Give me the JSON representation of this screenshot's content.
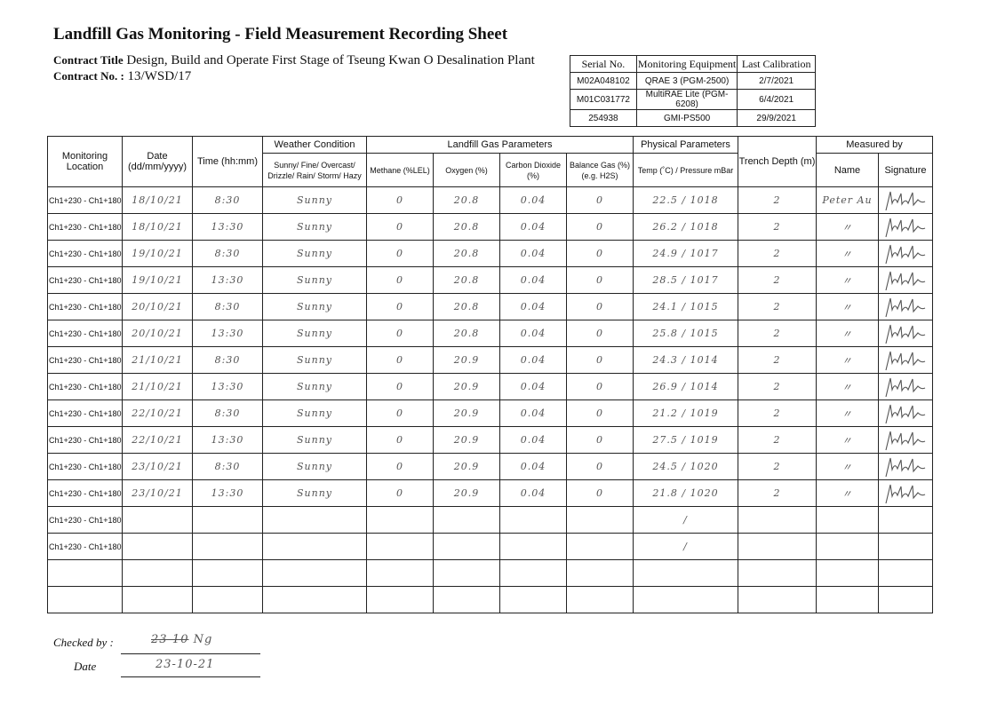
{
  "header": {
    "title": "Landfill Gas Monitoring - Field Measurement Recording Sheet",
    "contract_title_label": "Contract Title",
    "contract_title": "Design, Build and Operate First Stage of Tseung Kwan O Desalination Plant",
    "contract_no_label": "Contract No. :",
    "contract_no": "13/WSD/17"
  },
  "equipment": {
    "headers": [
      "Serial No.",
      "Monitoring Equipment",
      "Last Calibration"
    ],
    "rows": [
      [
        "M02A048102",
        "QRAE 3 (PGM-2500)",
        "2/7/2021"
      ],
      [
        "M01C031772",
        "MultiRAE Lite (PGM-6208)",
        "6/4/2021"
      ],
      [
        "254938",
        "GMI-PS500",
        "29/9/2021"
      ]
    ]
  },
  "table": {
    "headers": {
      "location": "Monitoring Location",
      "date": "Date (dd/mm/yyyy)",
      "time": "Time (hh:mm)",
      "weather_group": "Weather Condition",
      "weather": "Sunny/ Fine/ Overcast/ Drizzle/ Rain/ Storm/ Hazy",
      "gas_group": "Landfill Gas Parameters",
      "methane": "Methane (%LEL)",
      "oxygen": "Oxygen (%)",
      "co2": "Carbon Dioxide (%)",
      "balance": "Balance Gas (%) (e.g. H2S)",
      "physical_group": "Physical Parameters",
      "temp_pressure": "Temp (˚C) / Pressure mBar",
      "trench": "Trench Depth (m)",
      "measured_group": "Measured by",
      "name": "Name",
      "signature": "Signature"
    },
    "rows": [
      {
        "location": "Ch1+230 - Ch1+180",
        "date": "18/10/21",
        "time": "8:30",
        "weather": "Sunny",
        "methane": "0",
        "oxygen": "20.8",
        "co2": "0.04",
        "balance": "0",
        "temp_pressure": "22.5 / 1018",
        "trench": "2",
        "name": "Peter Au",
        "signed": true
      },
      {
        "location": "Ch1+230 - Ch1+180",
        "date": "18/10/21",
        "time": "13:30",
        "weather": "Sunny",
        "methane": "0",
        "oxygen": "20.8",
        "co2": "0.04",
        "balance": "0",
        "temp_pressure": "26.2 / 1018",
        "trench": "2",
        "name": "〃",
        "signed": true
      },
      {
        "location": "Ch1+230 - Ch1+180",
        "date": "19/10/21",
        "time": "8:30",
        "weather": "Sunny",
        "methane": "0",
        "oxygen": "20.8",
        "co2": "0.04",
        "balance": "0",
        "temp_pressure": "24.9 / 1017",
        "trench": "2",
        "name": "〃",
        "signed": true
      },
      {
        "location": "Ch1+230 - Ch1+180",
        "date": "19/10/21",
        "time": "13:30",
        "weather": "Sunny",
        "methane": "0",
        "oxygen": "20.8",
        "co2": "0.04",
        "balance": "0",
        "temp_pressure": "28.5 / 1017",
        "trench": "2",
        "name": "〃",
        "signed": true
      },
      {
        "location": "Ch1+230 - Ch1+180",
        "date": "20/10/21",
        "time": "8:30",
        "weather": "Sunny",
        "methane": "0",
        "oxygen": "20.8",
        "co2": "0.04",
        "balance": "0",
        "temp_pressure": "24.1 / 1015",
        "trench": "2",
        "name": "〃",
        "signed": true
      },
      {
        "location": "Ch1+230 - Ch1+180",
        "date": "20/10/21",
        "time": "13:30",
        "weather": "Sunny",
        "methane": "0",
        "oxygen": "20.8",
        "co2": "0.04",
        "balance": "0",
        "temp_pressure": "25.8 / 1015",
        "trench": "2",
        "name": "〃",
        "signed": true
      },
      {
        "location": "Ch1+230 - Ch1+180",
        "date": "21/10/21",
        "time": "8:30",
        "weather": "Sunny",
        "methane": "0",
        "oxygen": "20.9",
        "co2": "0.04",
        "balance": "0",
        "temp_pressure": "24.3 / 1014",
        "trench": "2",
        "name": "〃",
        "signed": true
      },
      {
        "location": "Ch1+230 - Ch1+180",
        "date": "21/10/21",
        "time": "13:30",
        "weather": "Sunny",
        "methane": "0",
        "oxygen": "20.9",
        "co2": "0.04",
        "balance": "0",
        "temp_pressure": "26.9 / 1014",
        "trench": "2",
        "name": "〃",
        "signed": true
      },
      {
        "location": "Ch1+230 - Ch1+180",
        "date": "22/10/21",
        "time": "8:30",
        "weather": "Sunny",
        "methane": "0",
        "oxygen": "20.9",
        "co2": "0.04",
        "balance": "0",
        "temp_pressure": "21.2 / 1019",
        "trench": "2",
        "name": "〃",
        "signed": true
      },
      {
        "location": "Ch1+230 - Ch1+180",
        "date": "22/10/21",
        "time": "13:30",
        "weather": "Sunny",
        "methane": "0",
        "oxygen": "20.9",
        "co2": "0.04",
        "balance": "0",
        "temp_pressure": "27.5 / 1019",
        "trench": "2",
        "name": "〃",
        "signed": true
      },
      {
        "location": "Ch1+230 - Ch1+180",
        "date": "23/10/21",
        "time": "8:30",
        "weather": "Sunny",
        "methane": "0",
        "oxygen": "20.9",
        "co2": "0.04",
        "balance": "0",
        "temp_pressure": "24.5 / 1020",
        "trench": "2",
        "name": "〃",
        "signed": true
      },
      {
        "location": "Ch1+230 - Ch1+180",
        "date": "23/10/21",
        "time": "13:30",
        "weather": "Sunny",
        "methane": "0",
        "oxygen": "20.9",
        "co2": "0.04",
        "balance": "0",
        "temp_pressure": "21.8 / 1020",
        "trench": "2",
        "name": "〃",
        "signed": true
      },
      {
        "location": "Ch1+230 - Ch1+180",
        "date": "",
        "time": "",
        "weather": "",
        "methane": "",
        "oxygen": "",
        "co2": "",
        "balance": "",
        "temp_pressure": "/",
        "trench": "",
        "name": "",
        "signed": false
      },
      {
        "location": "Ch1+230 - Ch1+180",
        "date": "",
        "time": "",
        "weather": "",
        "methane": "",
        "oxygen": "",
        "co2": "",
        "balance": "",
        "temp_pressure": "/",
        "trench": "",
        "name": "",
        "signed": false
      },
      {
        "location": "",
        "date": "",
        "time": "",
        "weather": "",
        "methane": "",
        "oxygen": "",
        "co2": "",
        "balance": "",
        "temp_pressure": "",
        "trench": "",
        "name": "",
        "signed": false
      },
      {
        "location": "",
        "date": "",
        "time": "",
        "weather": "",
        "methane": "",
        "oxygen": "",
        "co2": "",
        "balance": "",
        "temp_pressure": "",
        "trench": "",
        "name": "",
        "signed": false
      }
    ]
  },
  "footer": {
    "checked_by_label": "Checked by :",
    "checked_by_struck": "23-10",
    "checked_by": "Ng",
    "date_label": "Date",
    "date": "23-10-21"
  }
}
